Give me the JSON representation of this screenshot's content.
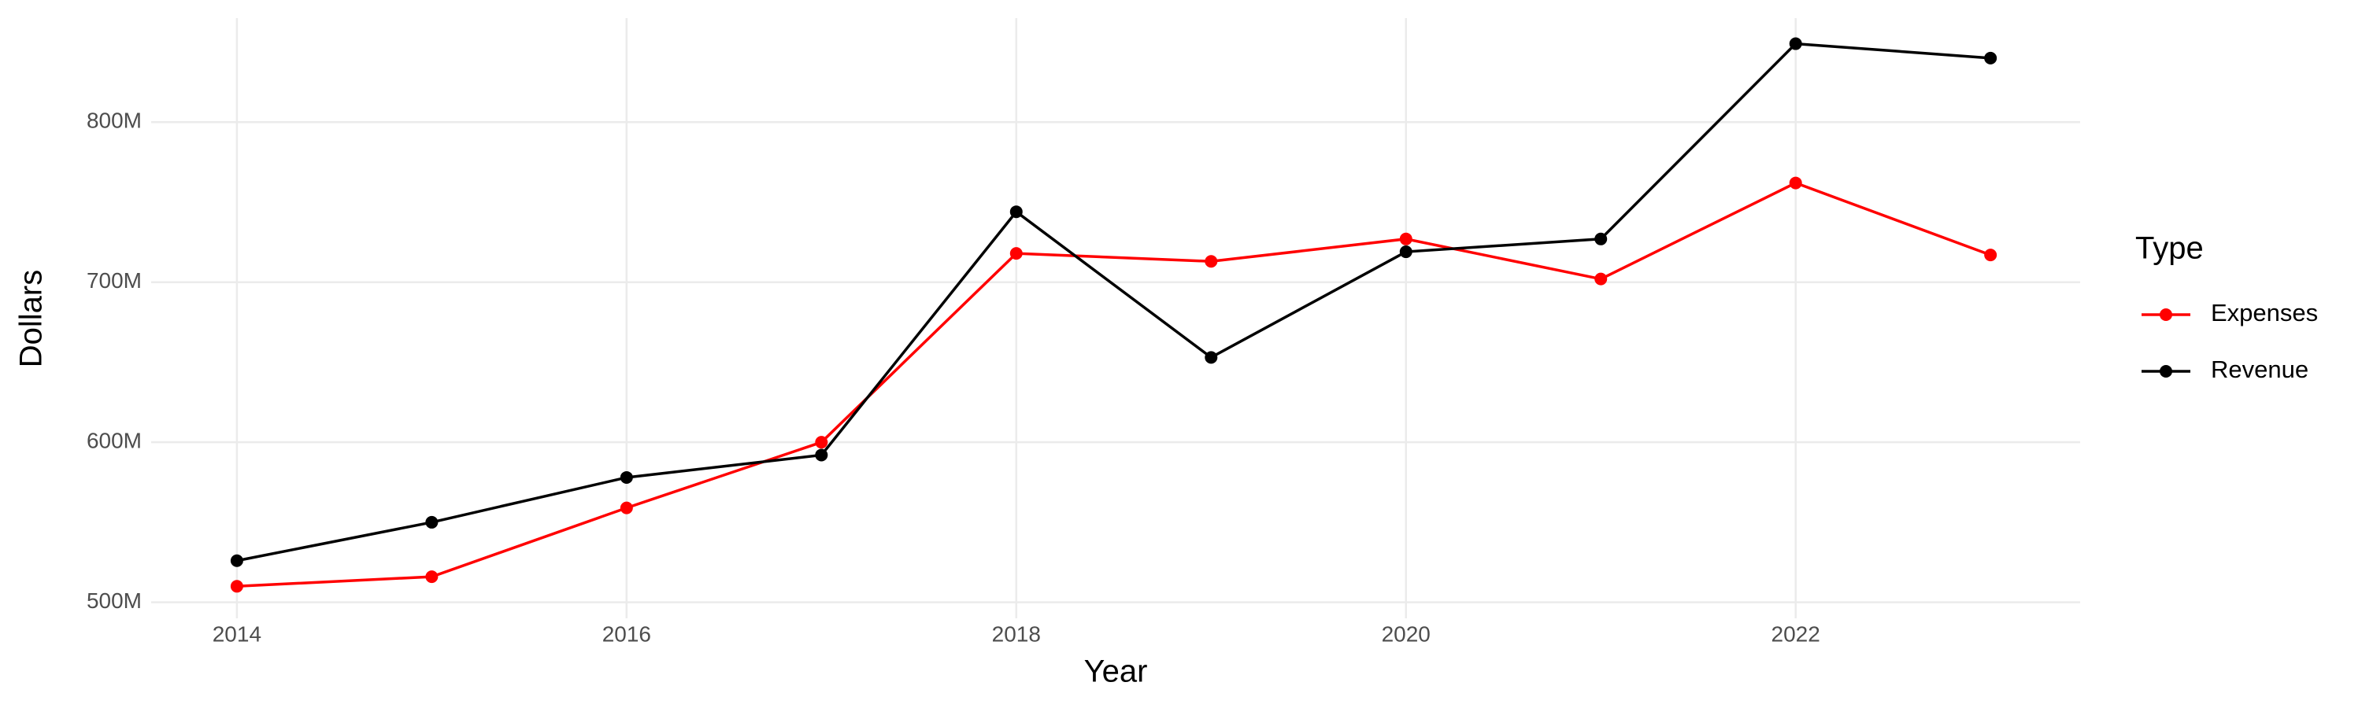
{
  "chart_data": {
    "type": "line",
    "x_label": "Year",
    "y_label": "Dollars",
    "legend_title": "Type",
    "x": [
      2014,
      2015,
      2016,
      2017,
      2018,
      2019,
      2020,
      2021,
      2022,
      2023
    ],
    "series": [
      {
        "name": "Expenses",
        "color": "#ff0000",
        "values": [
          510000000,
          516000000,
          559000000,
          600000000,
          718000000,
          713000000,
          727000000,
          702000000,
          762000000,
          717000000
        ]
      },
      {
        "name": "Revenue",
        "color": "#000000",
        "values": [
          526000000,
          550000000,
          578000000,
          592000000,
          744000000,
          653000000,
          719000000,
          727000000,
          849000000,
          840000000
        ]
      }
    ],
    "xlim": [
      2013.56,
      2023.46
    ],
    "xticks": [
      2014,
      2016,
      2018,
      2020,
      2022
    ],
    "ylim": [
      490000000,
      865000000
    ],
    "yticks": [
      {
        "value": 500000000,
        "label": "500M"
      },
      {
        "value": 600000000,
        "label": "600M"
      },
      {
        "value": 700000000,
        "label": "700M"
      },
      {
        "value": 800000000,
        "label": "800M"
      }
    ],
    "grid": true,
    "legend": "right"
  }
}
